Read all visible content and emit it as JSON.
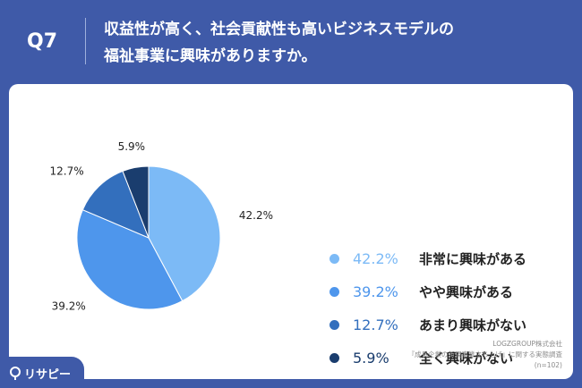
{
  "header": {
    "question_number": "Q7",
    "title_line1": "収益性が高く、社会貢献性も高いビジネスモデルの",
    "title_line2": "福祉事業に興味がありますか。"
  },
  "chart_data": {
    "type": "pie",
    "slices": [
      {
        "label": "非常に興味がある",
        "value": 42.2,
        "display": "42.2%",
        "color": "#7cbaf6"
      },
      {
        "label": "やや興味がある",
        "value": 39.2,
        "display": "39.2%",
        "color": "#4e96ec"
      },
      {
        "label": "あまり興味がない",
        "value": 12.7,
        "display": "12.7%",
        "color": "#336fbd"
      },
      {
        "label": "全く興味がない",
        "value": 5.9,
        "display": "5.9%",
        "color": "#1a3d6e"
      }
    ],
    "legend_position": "right"
  },
  "source": {
    "company": "LOGZGROUP株式会社",
    "survey": "『成長企業の新規事業立ち上げ』に関する実態調査",
    "sample": "(n=102)"
  },
  "logo": {
    "text": "リサピー"
  }
}
